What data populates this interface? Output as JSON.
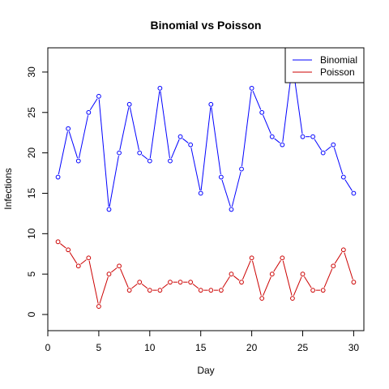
{
  "chart_data": {
    "type": "line",
    "title": "Binomial vs Poisson",
    "xlabel": "Day",
    "ylabel": "Infections",
    "xlim": [
      0,
      31
    ],
    "ylim": [
      -2,
      33
    ],
    "x_ticks": [
      0,
      5,
      10,
      15,
      20,
      25,
      30
    ],
    "y_ticks": [
      0,
      5,
      10,
      15,
      20,
      25,
      30
    ],
    "grid": false,
    "legend_position": "top-right",
    "x": [
      1,
      2,
      3,
      4,
      5,
      6,
      7,
      8,
      9,
      10,
      11,
      12,
      13,
      14,
      15,
      16,
      17,
      18,
      19,
      20,
      21,
      22,
      23,
      24,
      25,
      26,
      27,
      28,
      29,
      30
    ],
    "series": [
      {
        "name": "Binomial",
        "color": "#0000ff",
        "values": [
          17,
          23,
          19,
          25,
          27,
          13,
          20,
          26,
          20,
          19,
          28,
          19,
          22,
          21,
          15,
          26,
          17,
          13,
          18,
          28,
          25,
          22,
          21,
          31,
          22,
          22,
          20,
          21,
          17,
          15
        ]
      },
      {
        "name": "Poisson",
        "color": "#cc0000",
        "values": [
          9,
          8,
          6,
          7,
          1,
          5,
          6,
          3,
          4,
          3,
          3,
          4,
          4,
          4,
          3,
          3,
          3,
          5,
          4,
          7,
          2,
          5,
          7,
          2,
          5,
          3,
          3,
          6,
          8,
          4
        ]
      }
    ]
  }
}
